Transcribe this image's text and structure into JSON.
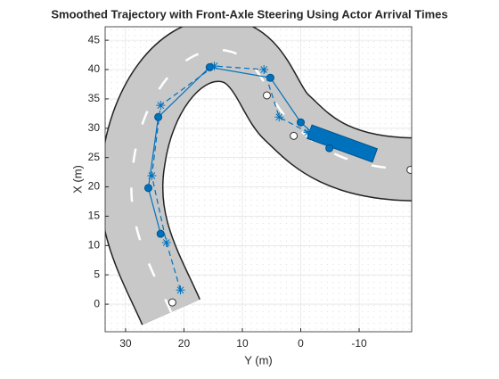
{
  "chart_data": {
    "type": "scatter",
    "title": "Smoothed Trajectory with Front-Axle Steering Using Actor Arrival Times",
    "x_label": "Y (m)",
    "y_label": "X (m)",
    "xlim": [
      33.5,
      -19
    ],
    "ylim": [
      -4.7,
      47.3
    ],
    "xticks": [
      30,
      20,
      10,
      0,
      -10
    ],
    "yticks": [
      0,
      5,
      10,
      15,
      20,
      25,
      30,
      35,
      40,
      45
    ],
    "grid": true,
    "series": [
      {
        "color": "#0072bd",
        "marker": "circle",
        "line": "solid",
        "x": [
          24,
          26.1,
          24.4,
          15.6,
          5.2,
          0,
          -4.9
        ],
        "values": [
          12,
          19.8,
          31.9,
          40.4,
          38.6,
          31,
          26.6
        ]
      },
      {
        "color": "#0072bd",
        "marker": "star",
        "line": "dashed",
        "x": [
          20.6,
          23,
          25.5,
          24,
          14.8,
          6.3,
          3.7,
          -1.2
        ],
        "values": [
          2.4,
          10.5,
          21.9,
          33.9,
          40.6,
          40,
          31.9,
          29.3
        ]
      },
      {
        "color": "#ffffff",
        "marker": "open",
        "x": [
          22,
          5.8,
          1.2,
          -18.8
        ],
        "values": [
          0.3,
          35.6,
          28.7,
          22.9
        ]
      }
    ]
  }
}
